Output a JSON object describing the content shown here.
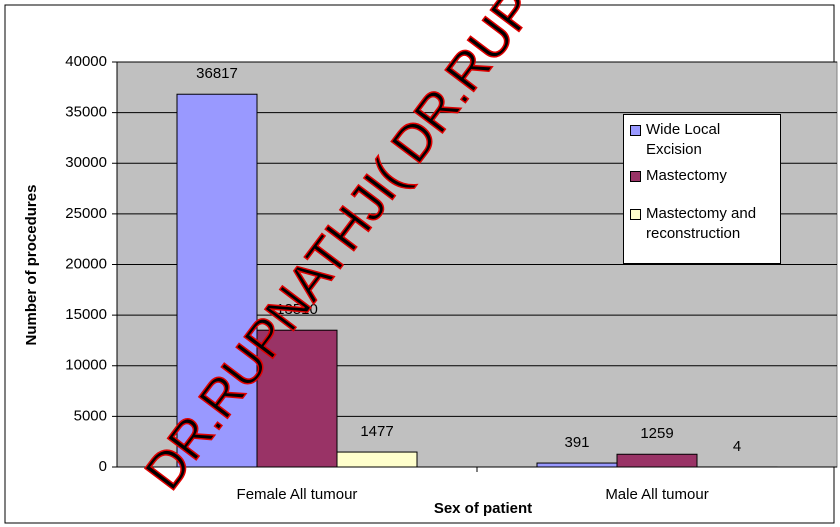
{
  "chart_data": {
    "type": "bar",
    "x_label": "Sex of patient",
    "y_label": "Number of procedures",
    "categories": [
      "Female All tumour",
      "Male All tumour"
    ],
    "series": [
      {
        "name": "Wide Local Excision",
        "color": "#9999ff",
        "values": [
          36817,
          391
        ]
      },
      {
        "name": "Mastectomy",
        "color": "#993366",
        "values": [
          13510,
          1259
        ]
      },
      {
        "name": "Mastectomy and reconstruction",
        "color": "#ffffcc",
        "values": [
          1477,
          4
        ]
      }
    ],
    "ylim": [
      0,
      40000
    ],
    "yticks": [
      0,
      5000,
      10000,
      15000,
      20000,
      25000,
      30000,
      35000,
      40000
    ],
    "grid": true,
    "plot_background": "#c0c0c0",
    "legend": "right",
    "watermark": "DR.RUPNATHJI( DR.RUP"
  }
}
